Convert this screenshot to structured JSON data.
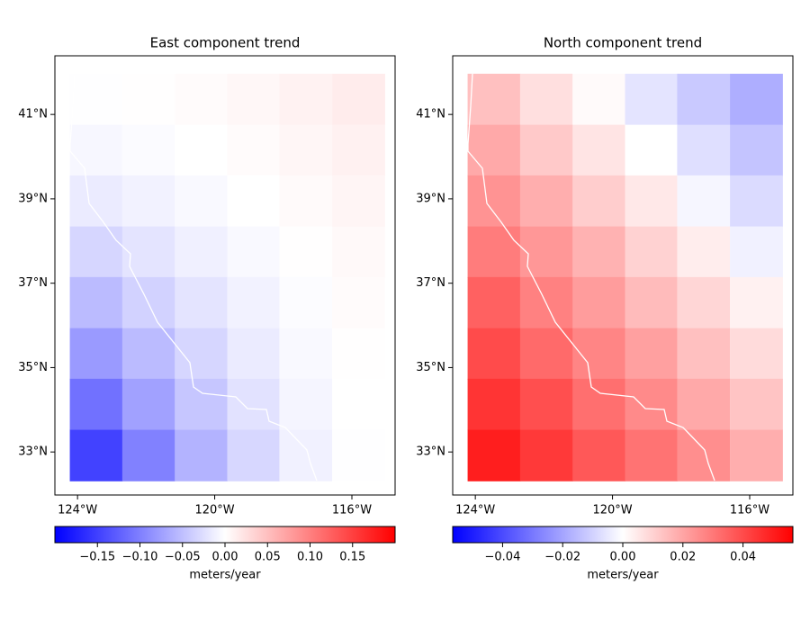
{
  "chart_data": [
    {
      "type": "heatmap",
      "title": "East component trend",
      "x": [
        -123.46,
        -121.93,
        -120.4,
        -118.87,
        -117.35,
        -115.81
      ],
      "y": [
        41.36,
        40.15,
        38.95,
        37.74,
        36.54,
        35.33,
        34.13,
        32.92
      ],
      "values": [
        [
          -0.001,
          0.001,
          0.003,
          0.006,
          0.01,
          0.015
        ],
        [
          -0.006,
          -0.003,
          0,
          0.003,
          0.007,
          0.011
        ],
        [
          -0.016,
          -0.01,
          -0.005,
          0,
          0.004,
          0.008
        ],
        [
          -0.032,
          -0.021,
          -0.012,
          -0.005,
          0.001,
          0.005
        ],
        [
          -0.053,
          -0.035,
          -0.021,
          -0.01,
          -0.002,
          0.003
        ],
        [
          -0.079,
          -0.053,
          -0.032,
          -0.016,
          -0.005,
          0.001
        ],
        [
          -0.111,
          -0.074,
          -0.045,
          -0.023,
          -0.008,
          0
        ],
        [
          -0.148,
          -0.099,
          -0.06,
          -0.031,
          -0.011,
          -0.001
        ]
      ],
      "xlim": [
        -124.66,
        -114.74
      ],
      "ylim": [
        31.98,
        42.39
      ],
      "xticks": [
        {
          "value": -124,
          "label": "124°W"
        },
        {
          "value": -120,
          "label": "120°W"
        },
        {
          "value": -116,
          "label": "116°W"
        }
      ],
      "yticks": [
        {
          "value": 33,
          "label": "33°N"
        },
        {
          "value": 35,
          "label": "35°N"
        },
        {
          "value": 37,
          "label": "37°N"
        },
        {
          "value": 39,
          "label": "39°N"
        },
        {
          "value": 41,
          "label": "41°N"
        }
      ],
      "colormap": [
        "#0000ff",
        "#ffffff",
        "#ff0000"
      ],
      "clim": [
        -0.2,
        0.2
      ],
      "colorbar_ticks": [
        {
          "value": -0.15,
          "label": "−0.15"
        },
        {
          "value": -0.1,
          "label": "−0.10"
        },
        {
          "value": -0.05,
          "label": "−0.05"
        },
        {
          "value": 0,
          "label": "0.00"
        },
        0.05,
        {
          "value": 0.1,
          "label": "0.10"
        },
        0.15
      ],
      "colorbar_label": "meters/year"
    },
    {
      "type": "heatmap",
      "title": "North component trend",
      "x": [
        -123.46,
        -121.93,
        -120.4,
        -118.87,
        -117.35,
        -115.81
      ],
      "y": [
        41.36,
        40.15,
        38.95,
        37.74,
        36.54,
        35.33,
        34.13,
        32.92
      ],
      "values": [
        [
          0.014,
          0.007,
          0.001,
          -0.006,
          -0.012,
          -0.018
        ],
        [
          0.019,
          0.012,
          0.006,
          0,
          -0.007,
          -0.013
        ],
        [
          0.024,
          0.018,
          0.011,
          0.005,
          -0.002,
          -0.008
        ],
        [
          0.029,
          0.023,
          0.017,
          0.01,
          0.004,
          -0.003
        ],
        [
          0.035,
          0.028,
          0.022,
          0.015,
          0.009,
          0.003
        ],
        [
          0.04,
          0.033,
          0.027,
          0.021,
          0.014,
          0.008
        ],
        [
          0.045,
          0.039,
          0.032,
          0.026,
          0.019,
          0.013
        ],
        [
          0.05,
          0.044,
          0.037,
          0.031,
          0.025,
          0.018
        ]
      ],
      "xlim": [
        -124.66,
        -114.74
      ],
      "ylim": [
        31.98,
        42.39
      ],
      "xticks": [
        {
          "value": -124,
          "label": "124°W"
        },
        {
          "value": -120,
          "label": "120°W"
        },
        {
          "value": -116,
          "label": "116°W"
        }
      ],
      "yticks": [
        {
          "value": 33,
          "label": "33°N"
        },
        {
          "value": 35,
          "label": "35°N"
        },
        {
          "value": 37,
          "label": "37°N"
        },
        {
          "value": 39,
          "label": "39°N"
        },
        {
          "value": 41,
          "label": "41°N"
        }
      ],
      "colormap": [
        "#0000ff",
        "#ffffff",
        "#ff0000"
      ],
      "clim": [
        -0.0566,
        0.0566
      ],
      "colorbar_ticks": [
        {
          "value": -0.04,
          "label": "−0.04"
        },
        {
          "value": -0.02,
          "label": "−0.02"
        },
        {
          "value": 0,
          "label": "0.00"
        },
        0.02,
        0.04
      ],
      "colorbar_label": "meters/year"
    }
  ]
}
